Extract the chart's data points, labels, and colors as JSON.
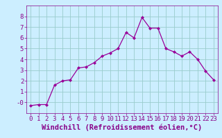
{
  "x": [
    0,
    1,
    2,
    3,
    4,
    5,
    6,
    7,
    8,
    9,
    10,
    11,
    12,
    13,
    14,
    15,
    16,
    17,
    18,
    19,
    20,
    21,
    22,
    23
  ],
  "y": [
    -0.3,
    -0.2,
    -0.2,
    1.6,
    2.0,
    2.1,
    3.2,
    3.3,
    3.7,
    4.3,
    4.6,
    5.0,
    6.5,
    6.0,
    7.9,
    6.9,
    6.9,
    5.0,
    4.7,
    4.3,
    4.7,
    4.0,
    2.9,
    2.1
  ],
  "line_color": "#990099",
  "marker": "D",
  "marker_size": 2,
  "bg_color": "#cceeff",
  "grid_color": "#99cccc",
  "xlabel": "Windchill (Refroidissement éolien,°C)",
  "xlim": [
    -0.5,
    23.5
  ],
  "ylim": [
    -1.0,
    9.0
  ],
  "xticks": [
    0,
    1,
    2,
    3,
    4,
    5,
    6,
    7,
    8,
    9,
    10,
    11,
    12,
    13,
    14,
    15,
    16,
    17,
    18,
    19,
    20,
    21,
    22,
    23
  ],
  "yticks": [
    0,
    1,
    2,
    3,
    4,
    5,
    6,
    7,
    8
  ],
  "ytick_labels": [
    "-0",
    "1",
    "2",
    "3",
    "4",
    "5",
    "6",
    "7",
    "8"
  ],
  "tick_fontsize": 6.5,
  "xlabel_fontsize": 7.5,
  "label_color": "#880088"
}
